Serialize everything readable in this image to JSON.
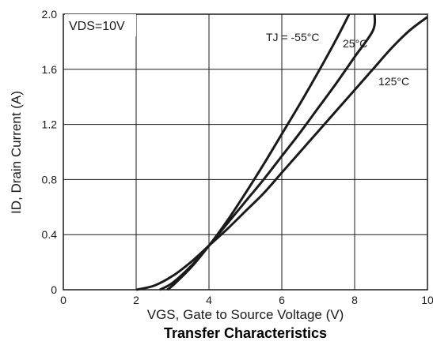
{
  "chart_data": {
    "type": "line",
    "title": "Transfer Characteristics",
    "xlabel": "VGS, Gate to Source Voltage (V)",
    "ylabel": "ID, Drain Current (A)",
    "xlim": [
      0,
      10
    ],
    "ylim": [
      0,
      2.0
    ],
    "x_ticks": [
      0,
      2,
      4,
      6,
      8,
      10
    ],
    "y_ticks": [
      0,
      0.4,
      0.8,
      1.2,
      1.6,
      2.0
    ],
    "x_tick_labels": [
      "0",
      "2",
      "4",
      "6",
      "8",
      "10"
    ],
    "y_tick_labels": [
      "0",
      "0.4",
      "0.8",
      "1.2",
      "1.6",
      "2.0"
    ],
    "grid": true,
    "condition_label": "VDS=10V",
    "series": [
      {
        "name": "TJ = -55°C",
        "x": [
          2.85,
          3.0,
          3.5,
          4.0,
          4.5,
          5.0,
          5.5,
          6.0,
          6.5,
          7.0,
          7.5,
          7.85
        ],
        "y": [
          0.0,
          0.03,
          0.16,
          0.32,
          0.5,
          0.7,
          0.91,
          1.13,
          1.35,
          1.58,
          1.82,
          2.0
        ]
      },
      {
        "name": "25°C",
        "x": [
          2.65,
          3.0,
          3.5,
          4.0,
          4.5,
          5.0,
          5.5,
          6.0,
          6.5,
          7.0,
          7.5,
          8.0,
          8.5,
          8.55
        ],
        "y": [
          0.0,
          0.05,
          0.17,
          0.32,
          0.48,
          0.64,
          0.8,
          0.97,
          1.14,
          1.32,
          1.5,
          1.69,
          1.88,
          2.0
        ]
      },
      {
        "name": "125°C",
        "x": [
          2.0,
          2.5,
          3.0,
          3.5,
          4.0,
          4.5,
          5.0,
          5.5,
          6.0,
          6.5,
          7.0,
          7.5,
          8.0,
          8.5,
          9.0,
          9.5,
          10.0
        ],
        "y": [
          0.0,
          0.03,
          0.1,
          0.2,
          0.32,
          0.44,
          0.57,
          0.7,
          0.85,
          1.0,
          1.15,
          1.3,
          1.45,
          1.6,
          1.75,
          1.88,
          1.98
        ]
      }
    ]
  },
  "legend_labels": [
    "TJ = -55°C",
    "25°C",
    "125°C"
  ],
  "colors": {
    "line": "#1a1a1a",
    "grid": "#1a1a1a",
    "background": "#ffffff"
  }
}
